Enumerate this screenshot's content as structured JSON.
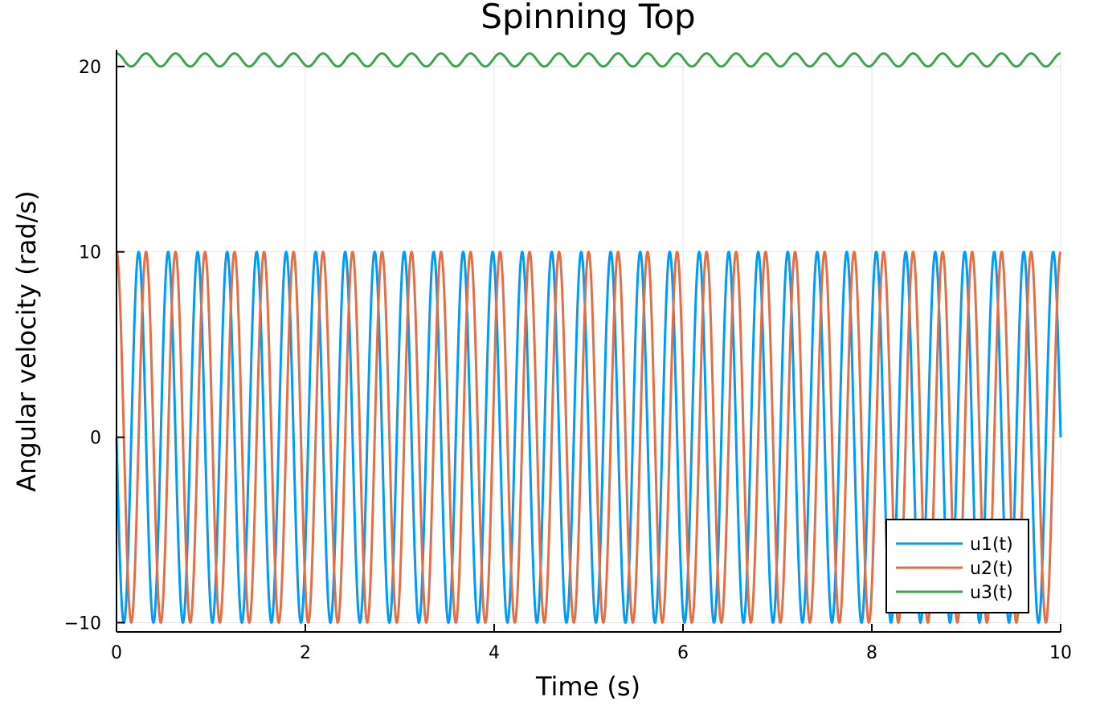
{
  "chart_data": {
    "type": "line",
    "title": "Spinning Top",
    "xlabel": "Time (s)",
    "ylabel": "Angular velocity (rad/s)",
    "xlim": [
      0,
      10
    ],
    "ylim": [
      -10.5,
      20.9
    ],
    "x_ticks": [
      0,
      2,
      4,
      6,
      8,
      10
    ],
    "x_tick_labels": [
      "0",
      "2",
      "4",
      "6",
      "8",
      "10"
    ],
    "y_ticks": [
      -10,
      0,
      10,
      20
    ],
    "y_tick_labels": [
      "−10",
      "0",
      "10",
      "20"
    ],
    "grid": true,
    "legend_position": "bottom-right",
    "series": [
      {
        "name": "u1(t)",
        "color": "#009AFA",
        "form": "sine",
        "amplitude": 10,
        "offset": 0,
        "frequency_hz": 3.2,
        "phase": 3.14159
      },
      {
        "name": "u2(t)",
        "color": "#E36F47",
        "form": "sine",
        "amplitude": 10,
        "offset": 0,
        "frequency_hz": 3.2,
        "phase": 1.5708
      },
      {
        "name": "u3(t)",
        "color": "#3EA44E",
        "form": "sine",
        "amplitude": 0.35,
        "offset": 20.35,
        "frequency_hz": 3.2,
        "phase": 1.5708
      }
    ]
  }
}
